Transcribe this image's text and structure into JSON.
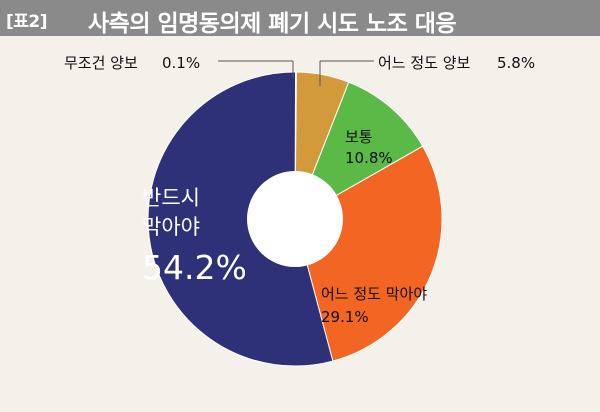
{
  "header": {
    "tag": "[표2]",
    "title": "사측의 임명동의제 폐기 시도 노조 대응"
  },
  "colors": {
    "header_bg": "#8a8a8a",
    "chart_bg": "#f3f1ea",
    "slice_must_block": "#2e3178",
    "slice_somewhat_block": "#f26522",
    "slice_neutral": "#5ab947",
    "slice_somewhat_concede": "#d39a3b",
    "slice_concede": "#7a2a2a"
  },
  "chart_data": {
    "type": "pie",
    "title": "사측의 임명동의제 폐기 시도 노조 대응",
    "donut": true,
    "slices": [
      {
        "label": "무조건 양보",
        "value": 0.1,
        "value_label": "0.1%",
        "color": "#7a2a2a"
      },
      {
        "label": "어느 정도 양보",
        "value": 5.8,
        "value_label": "5.8%",
        "color": "#d39a3b"
      },
      {
        "label": "보통",
        "value": 10.8,
        "value_label": "10.8%",
        "color": "#5ab947"
      },
      {
        "label": "어느 정도 막아야",
        "value": 29.1,
        "value_label": "29.1%",
        "color": "#f26522"
      },
      {
        "label_line1": "반드시",
        "label_line2": "막아야",
        "label": "반드시 막아야",
        "value": 54.2,
        "value_label": "54.2%",
        "color": "#2e3178"
      }
    ]
  }
}
